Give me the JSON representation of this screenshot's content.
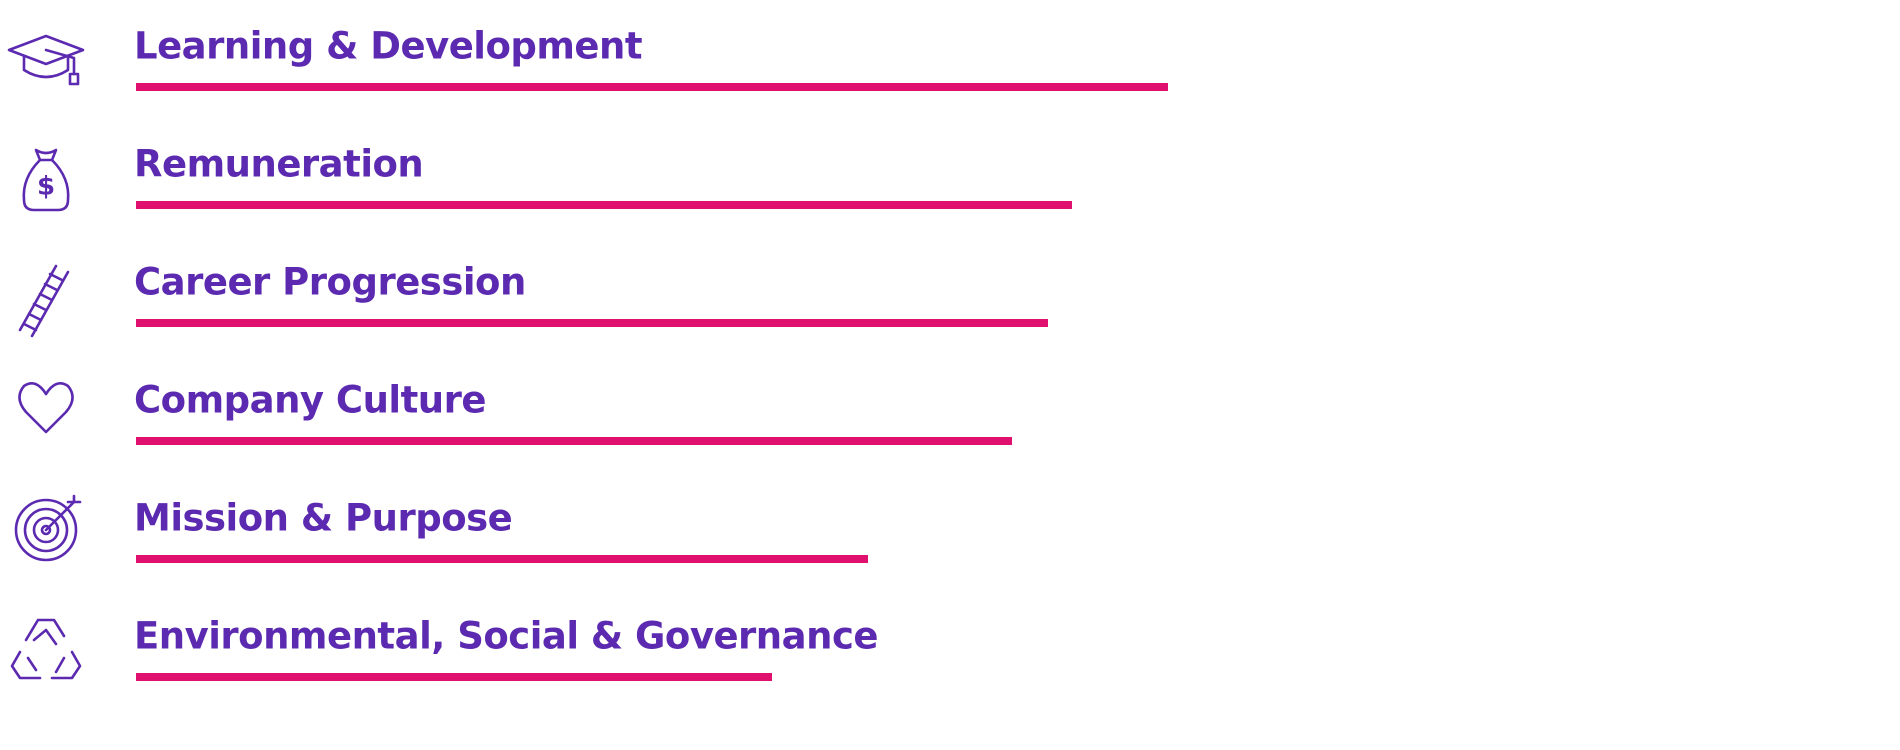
{
  "chart_data": {
    "type": "bar",
    "orientation": "horizontal",
    "categories": [
      "Learning & Development",
      "Remuneration",
      "Career Progression",
      "Company Culture",
      "Mission & Purpose",
      "Environmental, Social & Governance"
    ],
    "values": [
      86,
      78,
      76,
      73,
      61,
      53
    ],
    "color": "#e0106f",
    "label_color": "#5b2ab0",
    "xlim": [
      0,
      100
    ]
  }
}
